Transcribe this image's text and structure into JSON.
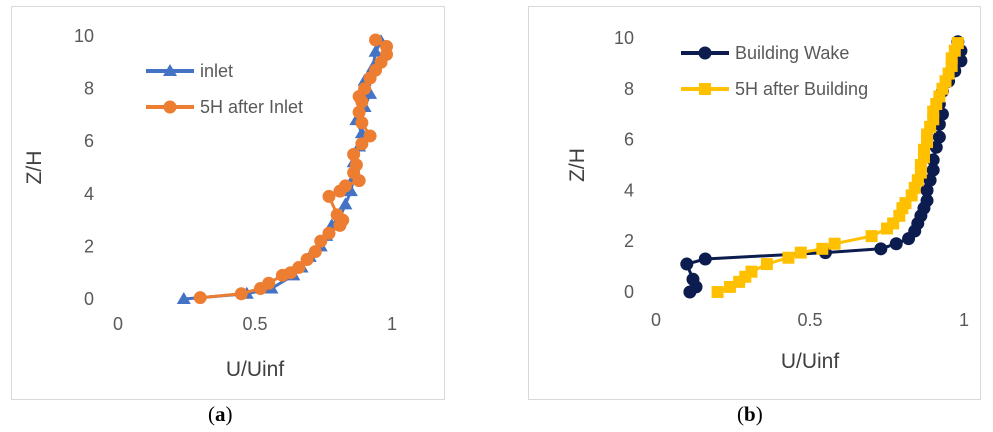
{
  "chart_data": [
    {
      "type": "line",
      "caption_open": "(",
      "caption_letter": "a",
      "caption_close": ")",
      "xlabel": "U/Uinf",
      "ylabel": "Z/H",
      "xlim": [
        0,
        1
      ],
      "ylim": [
        0,
        10
      ],
      "xticks": [
        "0",
        "0.5",
        "1"
      ],
      "yticks": [
        "0",
        "2",
        "4",
        "6",
        "8",
        "10"
      ],
      "grid": false,
      "legend_position": "top-left",
      "series": [
        {
          "name": "inlet",
          "marker": "triangle",
          "color": "#4472C4",
          "points": [
            [
              0.24,
              0.0
            ],
            [
              0.47,
              0.2
            ],
            [
              0.56,
              0.4
            ],
            [
              0.64,
              0.9
            ],
            [
              0.67,
              1.2
            ],
            [
              0.7,
              1.6
            ],
            [
              0.74,
              2.0
            ],
            [
              0.76,
              2.4
            ],
            [
              0.78,
              2.8
            ],
            [
              0.81,
              3.1
            ],
            [
              0.83,
              3.6
            ],
            [
              0.85,
              4.1
            ],
            [
              0.86,
              4.6
            ],
            [
              0.86,
              5.2
            ],
            [
              0.88,
              5.8
            ],
            [
              0.89,
              6.3
            ],
            [
              0.87,
              6.8
            ],
            [
              0.9,
              7.3
            ],
            [
              0.92,
              7.8
            ],
            [
              0.9,
              8.3
            ],
            [
              0.93,
              8.8
            ],
            [
              0.94,
              9.4
            ],
            [
              0.96,
              9.8
            ]
          ]
        },
        {
          "name": "5H after Inlet",
          "marker": "circle",
          "color": "#ED7D31",
          "points": [
            [
              0.3,
              0.05
            ],
            [
              0.45,
              0.2
            ],
            [
              0.52,
              0.4
            ],
            [
              0.55,
              0.6
            ],
            [
              0.6,
              0.9
            ],
            [
              0.63,
              1.0
            ],
            [
              0.66,
              1.2
            ],
            [
              0.69,
              1.5
            ],
            [
              0.72,
              1.8
            ],
            [
              0.74,
              2.2
            ],
            [
              0.77,
              2.5
            ],
            [
              0.81,
              2.8
            ],
            [
              0.82,
              3.0
            ],
            [
              0.8,
              3.2
            ],
            [
              0.77,
              3.9
            ],
            [
              0.81,
              4.1
            ],
            [
              0.83,
              4.3
            ],
            [
              0.88,
              4.5
            ],
            [
              0.86,
              4.8
            ],
            [
              0.87,
              5.1
            ],
            [
              0.86,
              5.5
            ],
            [
              0.89,
              5.9
            ],
            [
              0.92,
              6.2
            ],
            [
              0.89,
              6.7
            ],
            [
              0.88,
              7.1
            ],
            [
              0.89,
              7.5
            ],
            [
              0.88,
              7.7
            ],
            [
              0.9,
              8.0
            ],
            [
              0.92,
              8.4
            ],
            [
              0.94,
              8.7
            ],
            [
              0.96,
              9.0
            ],
            [
              0.98,
              9.3
            ],
            [
              0.98,
              9.6
            ],
            [
              0.94,
              9.85
            ]
          ]
        }
      ]
    },
    {
      "type": "line",
      "caption_open": "(",
      "caption_letter": "b",
      "caption_close": ")",
      "xlabel": "U/Uinf",
      "ylabel": "Z/H",
      "xlim": [
        0,
        1
      ],
      "ylim": [
        0,
        10
      ],
      "xticks": [
        "0",
        "0.5",
        "1"
      ],
      "yticks": [
        "0",
        "2",
        "4",
        "6",
        "8",
        "10"
      ],
      "grid": false,
      "legend_position": "top-left",
      "series": [
        {
          "name": "Building Wake",
          "marker": "circle",
          "color": "#0D1C4F",
          "points": [
            [
              0.11,
              0.0
            ],
            [
              0.13,
              0.2
            ],
            [
              0.12,
              0.5
            ],
            [
              0.1,
              1.1
            ],
            [
              0.16,
              1.3
            ],
            [
              0.55,
              1.55
            ],
            [
              0.73,
              1.7
            ],
            [
              0.78,
              1.9
            ],
            [
              0.82,
              2.1
            ],
            [
              0.84,
              2.4
            ],
            [
              0.85,
              2.7
            ],
            [
              0.86,
              3.0
            ],
            [
              0.87,
              3.3
            ],
            [
              0.88,
              3.6
            ],
            [
              0.88,
              4.0
            ],
            [
              0.89,
              4.4
            ],
            [
              0.9,
              4.8
            ],
            [
              0.9,
              5.2
            ],
            [
              0.91,
              5.7
            ],
            [
              0.92,
              6.1
            ],
            [
              0.92,
              6.6
            ],
            [
              0.93,
              7.0
            ],
            [
              0.92,
              7.4
            ],
            [
              0.93,
              7.9
            ],
            [
              0.95,
              8.3
            ],
            [
              0.97,
              8.7
            ],
            [
              0.99,
              9.1
            ],
            [
              0.99,
              9.5
            ],
            [
              0.98,
              9.85
            ]
          ]
        },
        {
          "name": "5H after Building",
          "marker": "square",
          "color": "#FFC000",
          "points": [
            [
              0.2,
              0.0
            ],
            [
              0.24,
              0.2
            ],
            [
              0.27,
              0.4
            ],
            [
              0.29,
              0.6
            ],
            [
              0.31,
              0.8
            ],
            [
              0.36,
              1.1
            ],
            [
              0.43,
              1.35
            ],
            [
              0.47,
              1.55
            ],
            [
              0.54,
              1.7
            ],
            [
              0.58,
              1.9
            ],
            [
              0.7,
              2.2
            ],
            [
              0.75,
              2.5
            ],
            [
              0.77,
              2.7
            ],
            [
              0.79,
              3.0
            ],
            [
              0.8,
              3.3
            ],
            [
              0.81,
              3.5
            ],
            [
              0.83,
              3.8
            ],
            [
              0.84,
              4.1
            ],
            [
              0.85,
              4.4
            ],
            [
              0.86,
              4.7
            ],
            [
              0.86,
              5.0
            ],
            [
              0.87,
              5.3
            ],
            [
              0.87,
              5.6
            ],
            [
              0.88,
              5.9
            ],
            [
              0.88,
              6.2
            ],
            [
              0.89,
              6.5
            ],
            [
              0.9,
              6.8
            ],
            [
              0.9,
              7.1
            ],
            [
              0.91,
              7.4
            ],
            [
              0.92,
              7.7
            ],
            [
              0.93,
              8.0
            ],
            [
              0.94,
              8.3
            ],
            [
              0.95,
              8.6
            ],
            [
              0.96,
              8.9
            ],
            [
              0.96,
              9.2
            ],
            [
              0.97,
              9.5
            ],
            [
              0.98,
              9.8
            ]
          ]
        }
      ]
    }
  ]
}
